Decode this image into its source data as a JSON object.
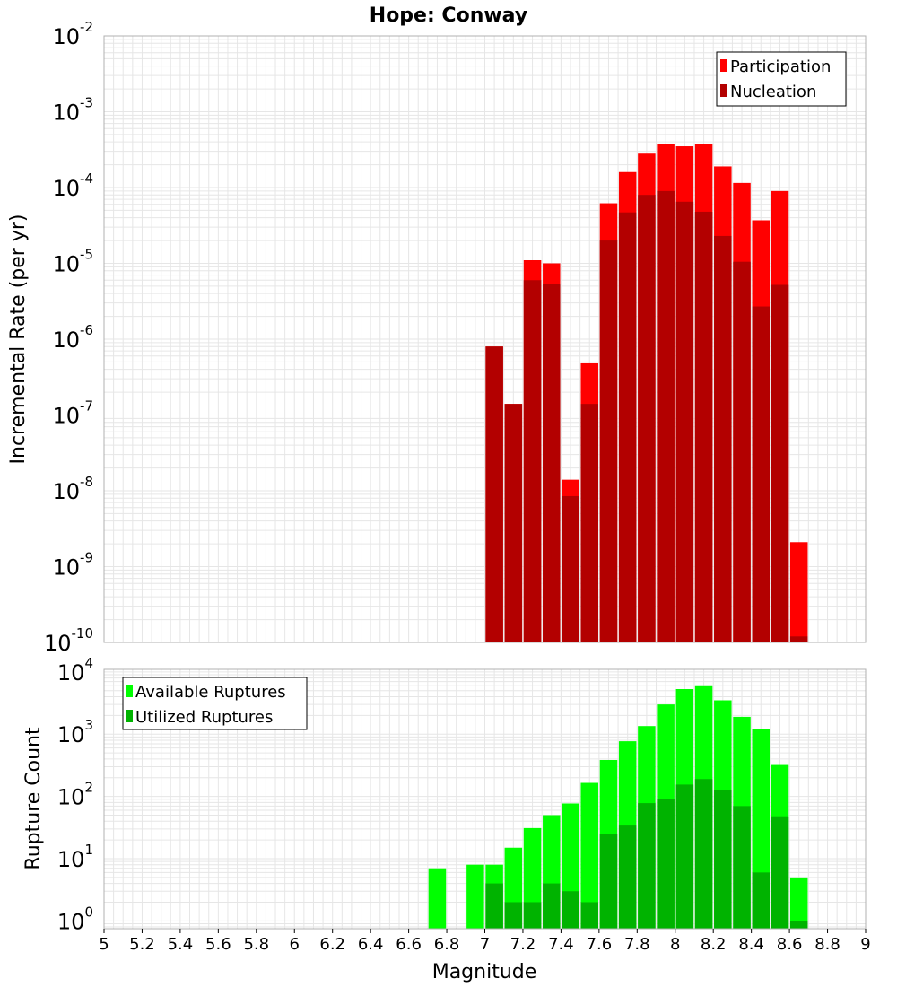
{
  "title": "Hope: Conway",
  "xlabel": "Magnitude",
  "x_ticks": [
    "5",
    "5.2",
    "5.4",
    "5.6",
    "5.8",
    "6",
    "6.2",
    "6.4",
    "6.6",
    "6.8",
    "7",
    "7.2",
    "7.4",
    "7.6",
    "7.8",
    "8",
    "8.2",
    "8.4",
    "8.6",
    "8.8",
    "9"
  ],
  "colors": {
    "participation": "#ff0000",
    "nucleation": "#b30000",
    "available": "#00ff00",
    "utilized": "#00b300",
    "grid": "#e6e6e6",
    "frame": "#b0b0b0"
  },
  "chart_data": [
    {
      "type": "bar",
      "panel": "top",
      "ylabel": "Incremental Rate (per yr)",
      "yscale": "log",
      "ylim": [
        1e-10,
        0.01
      ],
      "y_tick_exponents": [
        -10,
        -9,
        -8,
        -7,
        -6,
        -5,
        -4,
        -3,
        -2
      ],
      "xlim": [
        5,
        9
      ],
      "grid": true,
      "legend_position": "top-right",
      "x": [
        7.05,
        7.15,
        7.25,
        7.35,
        7.45,
        7.55,
        7.65,
        7.75,
        7.85,
        7.95,
        8.05,
        8.15,
        8.25,
        8.35,
        8.45,
        8.55,
        8.65
      ],
      "series": [
        {
          "name": "Participation",
          "values": [
            8e-07,
            1.4e-07,
            1.1e-05,
            1e-05,
            1.4e-08,
            4.8e-07,
            6.2e-05,
            0.00016,
            0.00028,
            0.00037,
            0.00035,
            0.00037,
            0.00019,
            0.000115,
            3.7e-05,
            9e-05,
            2.1e-09
          ]
        },
        {
          "name": "Nucleation",
          "values": [
            8e-07,
            1.4e-07,
            6e-06,
            5.4e-06,
            8.5e-09,
            1.4e-07,
            2e-05,
            4.7e-05,
            8e-05,
            9e-05,
            6.5e-05,
            4.8e-05,
            2.3e-05,
            1.05e-05,
            2.7e-06,
            5.2e-06,
            1.2e-10
          ]
        }
      ]
    },
    {
      "type": "bar",
      "panel": "bottom",
      "ylabel": "Rupture Count",
      "yscale": "log",
      "ylim": [
        0.75,
        11000
      ],
      "y_tick_exponents": [
        0,
        1,
        2,
        3,
        4
      ],
      "xlim": [
        5,
        9
      ],
      "grid": true,
      "legend_position": "top-left",
      "x": [
        6.75,
        6.95,
        7.05,
        7.15,
        7.25,
        7.35,
        7.45,
        7.55,
        7.65,
        7.75,
        7.85,
        7.95,
        8.05,
        8.15,
        8.25,
        8.35,
        8.45,
        8.55,
        8.65
      ],
      "series": [
        {
          "name": "Available Ruptures",
          "values": [
            7,
            8,
            8,
            15,
            31,
            50,
            77,
            165,
            385,
            770,
            1350,
            3000,
            5300,
            6100,
            3500,
            1900,
            1220,
            320,
            5
          ]
        },
        {
          "name": "Utilized Ruptures",
          "values": [
            0,
            0,
            4,
            2,
            2,
            4,
            3,
            2,
            25,
            34,
            78,
            92,
            155,
            190,
            125,
            70,
            6,
            48,
            1
          ]
        }
      ]
    }
  ]
}
